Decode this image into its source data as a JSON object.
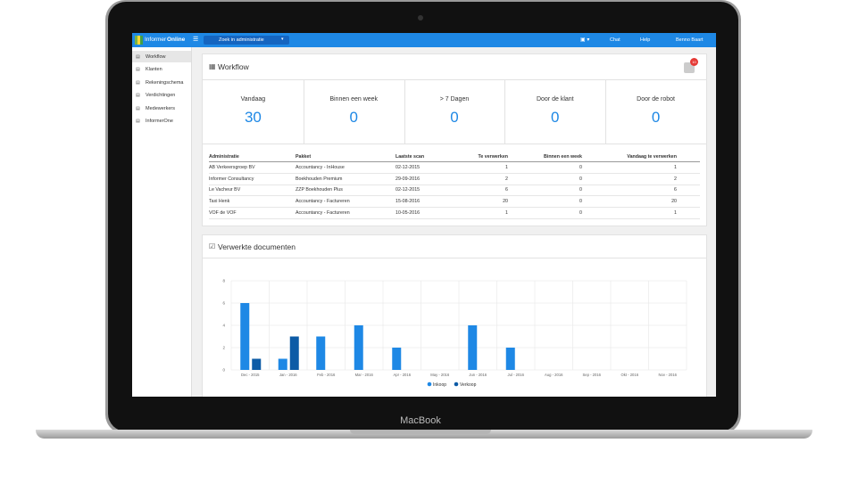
{
  "app": {
    "logo_text": "Informer",
    "logo_bold": "Online",
    "search_placeholder": "Zoek in administratie",
    "nav": [
      "Chat",
      "Help",
      "Benno Baart"
    ]
  },
  "sidebar": [
    "Workflow",
    "Klanten",
    "Rekeningschema",
    "Verdichtingen",
    "Medewerkers",
    "InformerOne"
  ],
  "workflow": {
    "title": "Workflow",
    "notifications": 10,
    "stats": [
      {
        "label": "Vandaag",
        "value": 30
      },
      {
        "label": "Binnen een week",
        "value": 0
      },
      {
        "label": "> 7 Dagen",
        "value": 0
      },
      {
        "label": "Door de klant",
        "value": 0
      },
      {
        "label": "Door de robot",
        "value": 0
      }
    ],
    "table": {
      "headers": [
        "Administratie",
        "Pakket",
        "Laatste scan",
        "Te verwerken",
        "Binnen een week",
        "Vandaag te verwerken"
      ],
      "rows": [
        [
          "AB Verkeersgroep BV",
          "Accountancy - InHouse",
          "02-12-2015",
          1,
          0,
          1
        ],
        [
          "Informer Consultancy",
          "Boekhouden Premium",
          "29-09-2016",
          2,
          0,
          2
        ],
        [
          "Le Vacheur BV",
          "ZZP Boekhouden Plus",
          "02-12-2015",
          6,
          0,
          6
        ],
        [
          "Taxi Henk",
          "Accountancy - Factureren",
          "15-08-2016",
          20,
          0,
          20
        ],
        [
          "VOF de VOF",
          "Accountancy - Factureren",
          "10-05-2016",
          1,
          0,
          1
        ]
      ]
    }
  },
  "documents": {
    "title": "Verwerkte documenten",
    "chart": {
      "type": "bar",
      "categories": [
        "Dec - 2015",
        "Jan - 2016",
        "Feb - 2016",
        "Mar - 2016",
        "Apr - 2016",
        "May - 2016",
        "Jun - 2016",
        "Jul - 2016",
        "Aug - 2016",
        "Sep - 2016",
        "Okt - 2016",
        "Nov - 2016"
      ],
      "series": [
        {
          "name": "Inkoop",
          "color": "#1e88e5",
          "values": [
            6,
            1,
            3,
            4,
            2,
            0,
            4,
            2,
            0,
            0,
            0,
            0
          ]
        },
        {
          "name": "Verkoop",
          "color": "#0d5ba6",
          "values": [
            1,
            3,
            0,
            0,
            0,
            0,
            0,
            0,
            0,
            0,
            0,
            0
          ]
        }
      ],
      "ylim": [
        0,
        8
      ],
      "yticks": [
        0,
        2,
        4,
        6,
        8
      ],
      "grid": true,
      "legend": "bottom"
    }
  },
  "device_label": "MacBook"
}
